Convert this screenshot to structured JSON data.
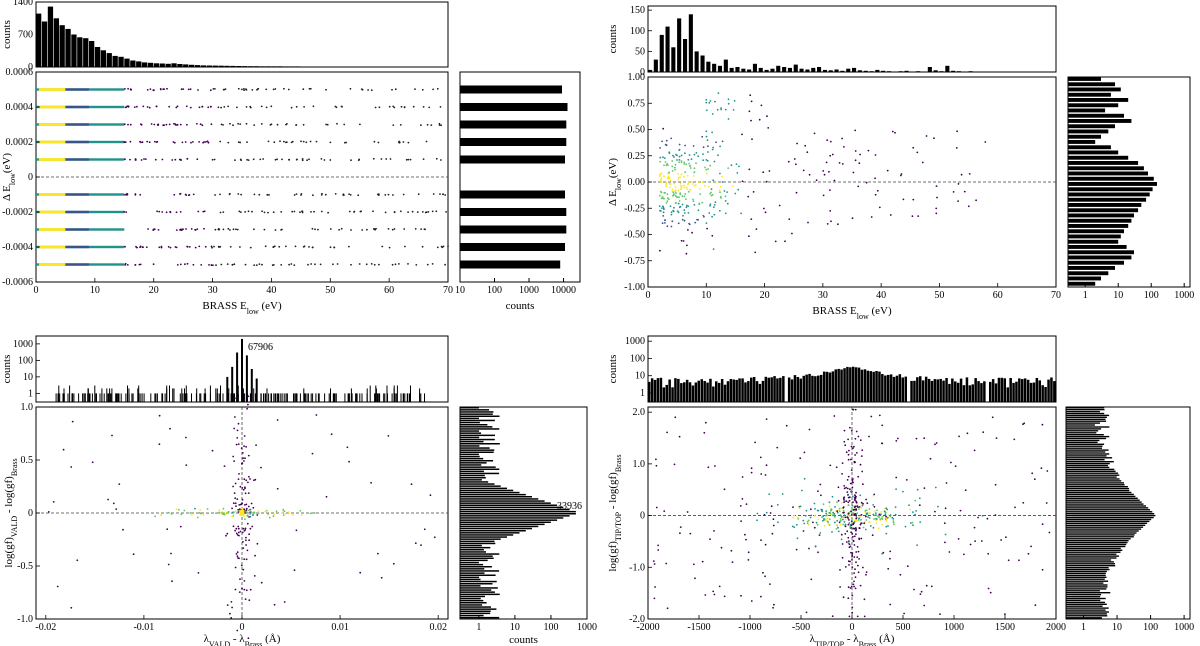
{
  "chart_data": [
    {
      "id": "tl",
      "type": "scatter",
      "xlabel": "BRASS",
      "xlabel_var": "E",
      "xlabel_sub": "low",
      "xlabel_unit": "(eV)",
      "ylabel_prefix": "Δ E",
      "ylabel_sub": "low",
      "ylabel_unit": "(eV)",
      "xlim": [
        0,
        70
      ],
      "ylim": [
        -0.0006,
        0.0006
      ],
      "xticks": [
        "0",
        "10",
        "20",
        "30",
        "40",
        "50",
        "60",
        "70"
      ],
      "yticks": [
        "-0.0006",
        "-0.0004",
        "-0.0002",
        "0",
        "0.0002",
        "0.0004",
        "0.0006"
      ],
      "ytick_values": [
        -0.0006,
        -0.0004,
        -0.0002,
        0,
        0.0002,
        0.0004,
        0.0006
      ],
      "bands": [
        -0.0005,
        -0.0004,
        -0.0003,
        -0.0002,
        -0.0001,
        0.0001,
        0.0002,
        0.0003,
        0.0004,
        0.0005
      ],
      "top_hist": {
        "ylabel": "counts",
        "ylim": [
          0,
          1400
        ],
        "yticks": [
          "0",
          "700",
          "1400"
        ],
        "ytick_values": [
          0,
          700,
          1400
        ],
        "bin_edges": [
          0,
          70
        ],
        "counts": [
          1150,
          980,
          1300,
          1050,
          900,
          820,
          700,
          640,
          620,
          560,
          430,
          360,
          300,
          240,
          220,
          180,
          140,
          120,
          100,
          90,
          80,
          75,
          70,
          80,
          65,
          55,
          48,
          40,
          35,
          32,
          30,
          28,
          26,
          24,
          22,
          20,
          18,
          17,
          16,
          15,
          14,
          14,
          13,
          12,
          12,
          11,
          10,
          10,
          9,
          9,
          8,
          8,
          7,
          7,
          6,
          6,
          5,
          5,
          4,
          4,
          3,
          3,
          3,
          2,
          2,
          2,
          1,
          1,
          1,
          1
        ]
      },
      "side_hist": {
        "xlabel": "counts",
        "xscale": "log",
        "xlim": [
          10,
          30000
        ],
        "xticks": [
          "10",
          "100",
          "1000",
          "10000"
        ],
        "xtick_values": [
          10,
          100,
          1000,
          10000
        ],
        "counts": [
          8000,
          11000,
          12000,
          12000,
          11000,
          11000,
          12000,
          12000,
          13000,
          9000
        ]
      }
    },
    {
      "id": "tr",
      "type": "scatter",
      "xlabel": "BRASS",
      "xlabel_var": "E",
      "xlabel_sub": "low",
      "xlabel_unit": "(eV)",
      "ylabel_prefix": "Δ E",
      "ylabel_sub": "low",
      "ylabel_unit": "(eV)",
      "xlim": [
        0,
        70
      ],
      "ylim": [
        -1.0,
        1.0
      ],
      "xticks": [
        "0",
        "10",
        "20",
        "30",
        "40",
        "50",
        "60",
        "70"
      ],
      "yticks": [
        "-1.00",
        "-0.75",
        "-0.50",
        "-0.25",
        "0.00",
        "0.25",
        "0.50",
        "0.75",
        "1.00"
      ],
      "ytick_values": [
        -1.0,
        -0.75,
        -0.5,
        -0.25,
        0,
        0.25,
        0.5,
        0.75,
        1.0
      ],
      "top_hist": {
        "ylabel": "counts",
        "ylim": [
          0,
          160
        ],
        "yticks": [
          "0",
          "50",
          "100",
          "150"
        ],
        "ytick_values": [
          0,
          50,
          100,
          150
        ],
        "bin_edges": [
          0,
          70
        ],
        "counts": [
          5,
          30,
          90,
          110,
          60,
          130,
          80,
          140,
          50,
          40,
          25,
          20,
          15,
          30,
          10,
          12,
          8,
          6,
          20,
          10,
          5,
          8,
          15,
          12,
          10,
          18,
          8,
          6,
          10,
          12,
          5,
          4,
          6,
          3,
          8,
          10,
          4,
          3,
          2,
          5,
          3,
          2,
          1,
          2,
          3,
          1,
          2,
          1,
          12,
          4,
          2,
          15,
          3,
          2,
          1,
          2,
          1,
          1,
          1,
          0,
          0,
          0,
          0,
          0,
          0,
          0,
          0,
          0,
          0,
          0
        ]
      },
      "side_hist": {
        "xscale": "log",
        "xlim": [
          0.3,
          1500
        ],
        "xticks": [
          "1",
          "10",
          "100",
          "1000"
        ],
        "xtick_values": [
          1,
          10,
          100,
          1000
        ],
        "counts": [
          3,
          8,
          12,
          6,
          20,
          10,
          4,
          15,
          25,
          8,
          5,
          3,
          2,
          6,
          10,
          20,
          40,
          60,
          80,
          120,
          150,
          110,
          90,
          70,
          50,
          40,
          30,
          25,
          20,
          15,
          12,
          10,
          18,
          30,
          25,
          15,
          8,
          5,
          3,
          2
        ]
      }
    },
    {
      "id": "bl",
      "type": "scatter",
      "xlabel_var": "λ",
      "xlabel_sub1": "VALD",
      "xlabel_mid": "- λ",
      "xlabel_sub2": "Brass",
      "xlabel_unit": "(Å)",
      "ylabel_prefix": "log(gf)",
      "ylabel_sub1": "VALD",
      "ylabel_mid": "- log(gf)",
      "ylabel_sub2": "Brass",
      "xlim": [
        -0.021,
        0.021
      ],
      "ylim": [
        -1.0,
        1.0
      ],
      "xticks": [
        "-0.02",
        "-0.01",
        "0",
        "0.01",
        "0.02"
      ],
      "xtick_values": [
        -0.02,
        -0.01,
        0,
        0.01,
        0.02
      ],
      "yticks": [
        "-1.0",
        "-0.5",
        "0",
        "0.5",
        "1.0"
      ],
      "ytick_values": [
        -1.0,
        -0.5,
        0,
        0.5,
        1.0
      ],
      "top_hist": {
        "ylabel": "counts",
        "yscale": "log",
        "ylim": [
          0.3,
          3000
        ],
        "yticks": [
          "1",
          "10",
          "100",
          "1000"
        ],
        "ytick_values": [
          1,
          10,
          100,
          1000
        ],
        "peak_label": "67906"
      },
      "side_hist": {
        "xlabel": "counts",
        "xscale": "log",
        "xlim": [
          0.3,
          1000
        ],
        "xticks": [
          "1",
          "10",
          "100",
          "1000"
        ],
        "xtick_values": [
          1,
          10,
          100,
          1000
        ],
        "peak_label": "33936"
      }
    },
    {
      "id": "br",
      "type": "scatter",
      "xlabel_var": "λ",
      "xlabel_sub1": "TIP/TOP",
      "xlabel_mid": "- λ",
      "xlabel_sub2": "Brass",
      "xlabel_unit": "(Å)",
      "ylabel_prefix": "log(gf)",
      "ylabel_sub1": "TIP/TOP",
      "ylabel_mid": "- log(gf)",
      "ylabel_sub2": "Brass",
      "xlim": [
        -2000,
        2000
      ],
      "ylim": [
        -2.0,
        2.1
      ],
      "xticks": [
        "-2000",
        "-1500",
        "-1000",
        "-500",
        "0",
        "500",
        "1000",
        "1500",
        "2000"
      ],
      "xtick_values": [
        -2000,
        -1500,
        -1000,
        -500,
        0,
        500,
        1000,
        1500,
        2000
      ],
      "yticks": [
        "-2.0",
        "-1.0",
        "0",
        "1.0",
        "2.0"
      ],
      "ytick_values": [
        -2.0,
        -1.0,
        0,
        1.0,
        2.0
      ],
      "top_hist": {
        "ylabel": "counts",
        "yscale": "log",
        "ylim": [
          0.3,
          2000
        ],
        "yticks": [
          "1",
          "10",
          "100",
          "1000"
        ],
        "ytick_values": [
          1,
          10,
          100,
          1000
        ]
      },
      "side_hist": {
        "xscale": "log",
        "xlim": [
          0.3,
          1500
        ],
        "xticks": [
          "1",
          "10",
          "100",
          "1000"
        ],
        "xtick_values": [
          1,
          10,
          100,
          1000
        ]
      }
    }
  ],
  "colormap": [
    "#440154",
    "#3b528b",
    "#21918c",
    "#5ec962",
    "#fde725"
  ]
}
